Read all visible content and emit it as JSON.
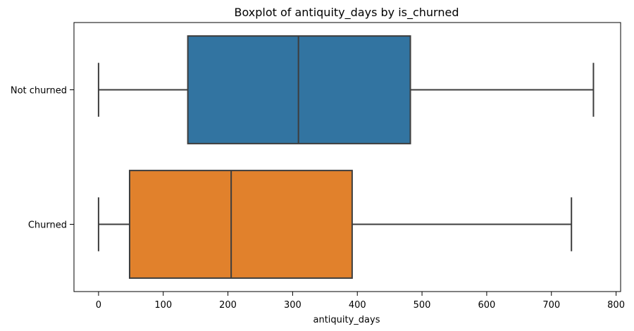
{
  "chart_data": {
    "type": "boxplot",
    "title": "Boxplot of antiquity_days by is_churned",
    "xlabel": "antiquity_days",
    "ylabel": "",
    "xlim": [
      -38,
      807
    ],
    "xticks": [
      0,
      100,
      200,
      300,
      400,
      500,
      600,
      700,
      800
    ],
    "xtick_labels": [
      "0",
      "100",
      "200",
      "300",
      "400",
      "500",
      "600",
      "700",
      "800"
    ],
    "grid": false,
    "categories": [
      "Not churned",
      "Churned"
    ],
    "series": [
      {
        "category": "Not churned",
        "color": "#3274a1",
        "whisker_low": 0,
        "q1": 138,
        "median": 309,
        "q3": 482,
        "whisker_high": 765
      },
      {
        "category": "Churned",
        "color": "#e1812c",
        "whisker_low": 0,
        "q1": 48,
        "median": 205,
        "q3": 392,
        "whisker_high": 731
      }
    ]
  }
}
